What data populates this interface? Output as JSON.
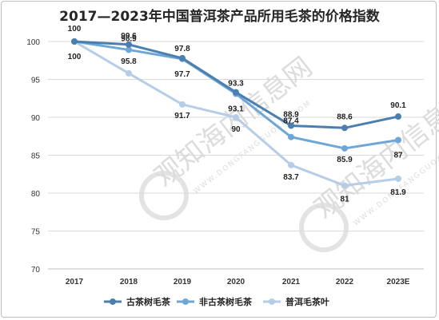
{
  "chart_data": {
    "type": "line",
    "title": "2017—2023年中国普洱茶产品所用毛茶的价格指数",
    "categories": [
      "2017",
      "2018",
      "2019",
      "2020",
      "2021",
      "2022",
      "2023E"
    ],
    "ylim": [
      70,
      100
    ],
    "yticks": [
      70,
      75,
      80,
      85,
      90,
      95,
      100
    ],
    "grid": true,
    "legend_position": "bottom",
    "series": [
      {
        "name": "古茶树毛茶",
        "values": [
          100,
          99.6,
          97.8,
          93.3,
          88.9,
          88.6,
          90.1
        ],
        "color": "#4a7fb0"
      },
      {
        "name": "非古茶树毛茶",
        "values": [
          100,
          98.9,
          97.7,
          93.1,
          87.4,
          85.9,
          87
        ],
        "color": "#6ea6d6"
      },
      {
        "name": "普洱毛茶叶",
        "values": [
          100,
          95.8,
          91.7,
          90,
          83.7,
          81,
          81.9
        ],
        "color": "#b5cde6"
      }
    ],
    "data_labels": [
      {
        "text": "100",
        "category": "2017",
        "series": 0
      },
      {
        "text": "99.6",
        "category": "2018",
        "series": 0
      },
      {
        "text": "97.8",
        "category": "2019",
        "series": 0
      },
      {
        "text": "93.3",
        "category": "2020",
        "series": 0
      },
      {
        "text": "88.9",
        "category": "2021",
        "series": 0
      },
      {
        "text": "88.6",
        "category": "2022",
        "series": 0
      },
      {
        "text": "90.1",
        "category": "2023E",
        "series": 0
      },
      {
        "text": "100",
        "category": "2017",
        "series": 2
      },
      {
        "text": "98.9",
        "category": "2018",
        "series": 1
      },
      {
        "text": "97.7",
        "category": "2019",
        "series": 1
      },
      {
        "text": "93.1",
        "category": "2020",
        "series": 1
      },
      {
        "text": "87.4",
        "category": "2021",
        "series": 1
      },
      {
        "text": "85.9",
        "category": "2022",
        "series": 1
      },
      {
        "text": "87",
        "category": "2023E",
        "series": 1
      },
      {
        "text": "95.8",
        "category": "2018",
        "series": 2
      },
      {
        "text": "91.7",
        "category": "2019",
        "series": 2
      },
      {
        "text": "90",
        "category": "2020",
        "series": 2
      },
      {
        "text": "83.7",
        "category": "2021",
        "series": 2
      },
      {
        "text": "81",
        "category": "2022",
        "series": 2
      },
      {
        "text": "81.9",
        "category": "2023E",
        "series": 2
      }
    ]
  },
  "watermark": {
    "text": "观知海内信息网",
    "subtext": "WWW.DONGFANGGUOXIN.COM"
  }
}
